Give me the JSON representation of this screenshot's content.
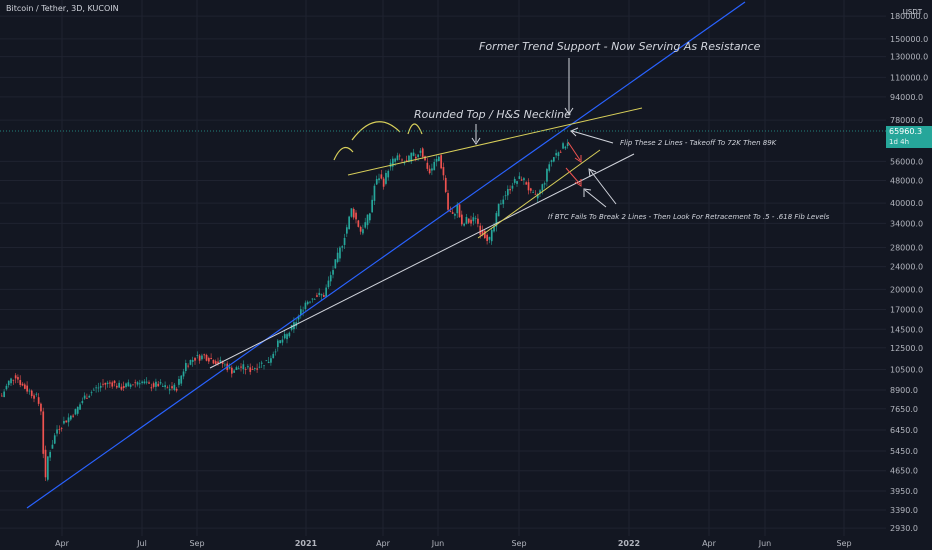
{
  "header": {
    "symbol": "Bitcoin / Tether, 3D, KUCOIN",
    "currency": "USDT"
  },
  "last_price": {
    "value": "65960.3",
    "countdown": "1d 4h"
  },
  "colors": {
    "bg": "#131722",
    "grid": "#1f2330",
    "up": "#26a69a",
    "down": "#ef5350",
    "blue_line": "#2962ff",
    "white_line": "#d1d4dc",
    "yellow": "#d8cf5a",
    "red_arrow": "#ef5350",
    "axis_text": "#b2b5be",
    "price_line": "#26a69a"
  },
  "chart_data": {
    "type": "candlestick",
    "x_ticks": [
      "Apr",
      "Jul",
      "Sep",
      "2021",
      "Apr",
      "Jun",
      "Sep",
      "2022",
      "Apr",
      "Jun",
      "Sep"
    ],
    "y_ticks": [
      180000,
      150000,
      130000,
      110000,
      94000,
      78000,
      56000,
      48000,
      40000,
      34000,
      28000,
      24000,
      20000,
      17000,
      14500,
      12500,
      10500,
      8900,
      7650,
      6450,
      5450,
      4650,
      3950,
      3390,
      2930
    ],
    "y_scale": "log",
    "y_range": [
      2750,
      205000
    ],
    "last_price": 65960.3,
    "price_path": [
      [
        0,
        8500
      ],
      [
        3,
        9500
      ],
      [
        6,
        10000
      ],
      [
        9,
        9200
      ],
      [
        12,
        8800
      ],
      [
        15,
        8400
      ],
      [
        17,
        7600
      ],
      [
        18,
        5400
      ],
      [
        19,
        4300
      ],
      [
        20,
        5200
      ],
      [
        24,
        6500
      ],
      [
        28,
        7000
      ],
      [
        32,
        7500
      ],
      [
        36,
        8400
      ],
      [
        40,
        8900
      ],
      [
        44,
        9300
      ],
      [
        48,
        9400
      ],
      [
        52,
        9100
      ],
      [
        56,
        9300
      ],
      [
        60,
        9600
      ],
      [
        64,
        9200
      ],
      [
        68,
        9300
      ],
      [
        72,
        9000
      ],
      [
        76,
        9100
      ],
      [
        80,
        11000
      ],
      [
        84,
        11500
      ],
      [
        88,
        11700
      ],
      [
        92,
        11300
      ],
      [
        96,
        11000
      ],
      [
        100,
        10400
      ],
      [
        104,
        10700
      ],
      [
        108,
        10500
      ],
      [
        112,
        10900
      ],
      [
        116,
        11300
      ],
      [
        120,
        12900
      ],
      [
        124,
        13800
      ],
      [
        128,
        15500
      ],
      [
        132,
        18000
      ],
      [
        136,
        19000
      ],
      [
        140,
        19100
      ],
      [
        144,
        23500
      ],
      [
        148,
        29000
      ],
      [
        150,
        33000
      ],
      [
        152,
        38000
      ],
      [
        154,
        35000
      ],
      [
        156,
        32000
      ],
      [
        158,
        34000
      ],
      [
        160,
        37000
      ],
      [
        162,
        46000
      ],
      [
        164,
        49500
      ],
      [
        166,
        47000
      ],
      [
        168,
        53000
      ],
      [
        170,
        56000
      ],
      [
        172,
        58000
      ],
      [
        174,
        56000
      ],
      [
        176,
        55000
      ],
      [
        178,
        59000
      ],
      [
        180,
        58000
      ],
      [
        182,
        62000
      ],
      [
        184,
        56000
      ],
      [
        186,
        51000
      ],
      [
        188,
        55000
      ],
      [
        190,
        58000
      ],
      [
        192,
        50000
      ],
      [
        193,
        44000
      ],
      [
        194,
        38000
      ],
      [
        196,
        36000
      ],
      [
        198,
        39000
      ],
      [
        200,
        33000
      ],
      [
        202,
        35000
      ],
      [
        204,
        34000
      ],
      [
        206,
        36000
      ],
      [
        208,
        32000
      ],
      [
        210,
        31000
      ],
      [
        212,
        29800
      ],
      [
        214,
        33000
      ],
      [
        216,
        39000
      ],
      [
        218,
        42000
      ],
      [
        220,
        44000
      ],
      [
        222,
        47000
      ],
      [
        224,
        48000
      ],
      [
        226,
        49000
      ],
      [
        228,
        47000
      ],
      [
        230,
        43000
      ],
      [
        232,
        42000
      ],
      [
        234,
        44000
      ],
      [
        236,
        48000
      ],
      [
        238,
        55000
      ],
      [
        240,
        58000
      ],
      [
        242,
        61000
      ],
      [
        244,
        63000
      ],
      [
        246,
        66000
      ]
    ]
  },
  "annotations": {
    "former_support": "Former Trend Support - Now Serving As Resistance",
    "rounded_top": "Rounded Top / H&S Neckline",
    "flip_lines": "Flip These 2 Lines - Takeoff To 72K Then 89K",
    "if_fails": "If BTC Fails To Break 2 Lines - Then Look For Retracement To .5 - .618 Fib Levels"
  }
}
